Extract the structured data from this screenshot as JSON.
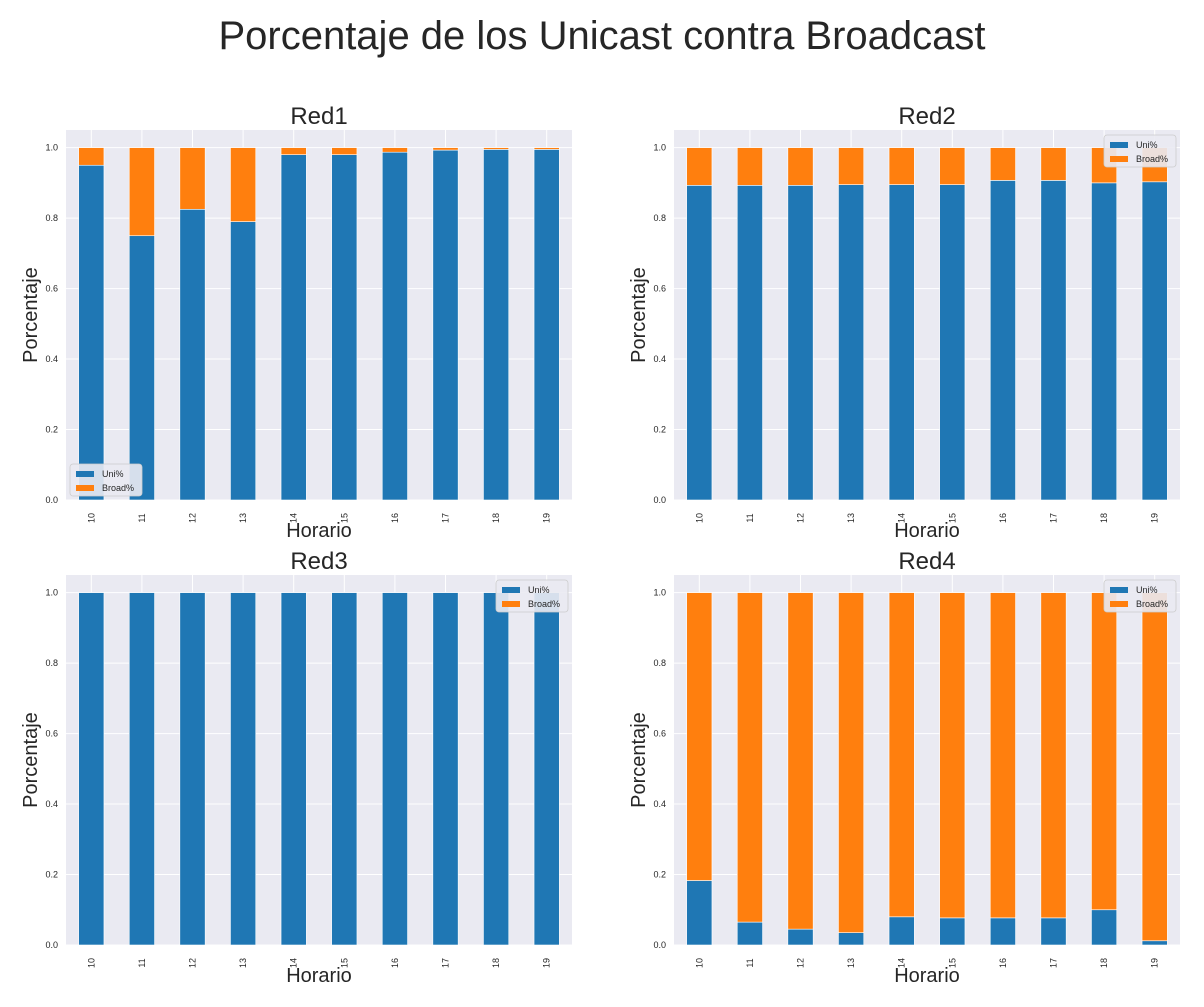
{
  "figure": {
    "title": "Porcentaje de los Unicast contra Broadcast"
  },
  "colors": {
    "uni": "#1f77b4",
    "broad": "#ff7f0e",
    "plot_bg": "#eaeaf2",
    "grid": "#ffffff"
  },
  "chart_data": [
    {
      "type": "bar",
      "stacked": true,
      "title": "Red1",
      "xlabel": "Horario",
      "ylabel": "Porcentaje",
      "ylim": [
        0,
        1.05
      ],
      "yticks": [
        "0.0",
        "0.2",
        "0.4",
        "0.6",
        "0.8",
        "1.0"
      ],
      "categories": [
        "10",
        "11",
        "12",
        "13",
        "14",
        "15",
        "16",
        "17",
        "18",
        "19"
      ],
      "series": [
        {
          "name": "Uni%",
          "values": [
            0.95,
            0.75,
            0.825,
            0.79,
            0.98,
            0.98,
            0.987,
            0.993,
            0.995,
            0.995
          ]
        },
        {
          "name": "Broad%",
          "values": [
            0.05,
            0.25,
            0.175,
            0.21,
            0.02,
            0.02,
            0.013,
            0.007,
            0.005,
            0.005
          ]
        }
      ],
      "legend": "lower-left"
    },
    {
      "type": "bar",
      "stacked": true,
      "title": "Red2",
      "xlabel": "Horario",
      "ylabel": "Porcentaje",
      "ylim": [
        0,
        1.05
      ],
      "yticks": [
        "0.0",
        "0.2",
        "0.4",
        "0.6",
        "0.8",
        "1.0"
      ],
      "categories": [
        "10",
        "11",
        "12",
        "13",
        "14",
        "15",
        "16",
        "17",
        "18",
        "19"
      ],
      "series": [
        {
          "name": "Uni%",
          "values": [
            0.893,
            0.893,
            0.893,
            0.895,
            0.895,
            0.895,
            0.907,
            0.907,
            0.9,
            0.903
          ]
        },
        {
          "name": "Broad%",
          "values": [
            0.107,
            0.107,
            0.107,
            0.105,
            0.105,
            0.105,
            0.093,
            0.093,
            0.1,
            0.097
          ]
        }
      ],
      "legend": "upper-right"
    },
    {
      "type": "bar",
      "stacked": true,
      "title": "Red3",
      "xlabel": "Horario",
      "ylabel": "Porcentaje",
      "ylim": [
        0,
        1.05
      ],
      "yticks": [
        "0.0",
        "0.2",
        "0.4",
        "0.6",
        "0.8",
        "1.0"
      ],
      "categories": [
        "10",
        "11",
        "12",
        "13",
        "14",
        "15",
        "16",
        "17",
        "18",
        "19"
      ],
      "series": [
        {
          "name": "Uni%",
          "values": [
            1.0,
            1.0,
            1.0,
            1.0,
            1.0,
            1.0,
            1.0,
            1.0,
            1.0,
            1.0
          ]
        },
        {
          "name": "Broad%",
          "values": [
            0.0,
            0.0,
            0.0,
            0.0,
            0.0,
            0.0,
            0.0,
            0.0,
            0.0,
            0.0
          ]
        }
      ],
      "legend": "upper-right"
    },
    {
      "type": "bar",
      "stacked": true,
      "title": "Red4",
      "xlabel": "Horario",
      "ylabel": "Porcentaje",
      "ylim": [
        0,
        1.05
      ],
      "yticks": [
        "0.0",
        "0.2",
        "0.4",
        "0.6",
        "0.8",
        "1.0"
      ],
      "categories": [
        "10",
        "11",
        "12",
        "13",
        "14",
        "15",
        "16",
        "17",
        "18",
        "19"
      ],
      "series": [
        {
          "name": "Uni%",
          "values": [
            0.183,
            0.065,
            0.045,
            0.035,
            0.08,
            0.077,
            0.077,
            0.077,
            0.1,
            0.012
          ]
        },
        {
          "name": "Broad%",
          "values": [
            0.817,
            0.935,
            0.955,
            0.965,
            0.92,
            0.923,
            0.923,
            0.923,
            0.9,
            0.988
          ]
        }
      ],
      "legend": "upper-right"
    }
  ]
}
